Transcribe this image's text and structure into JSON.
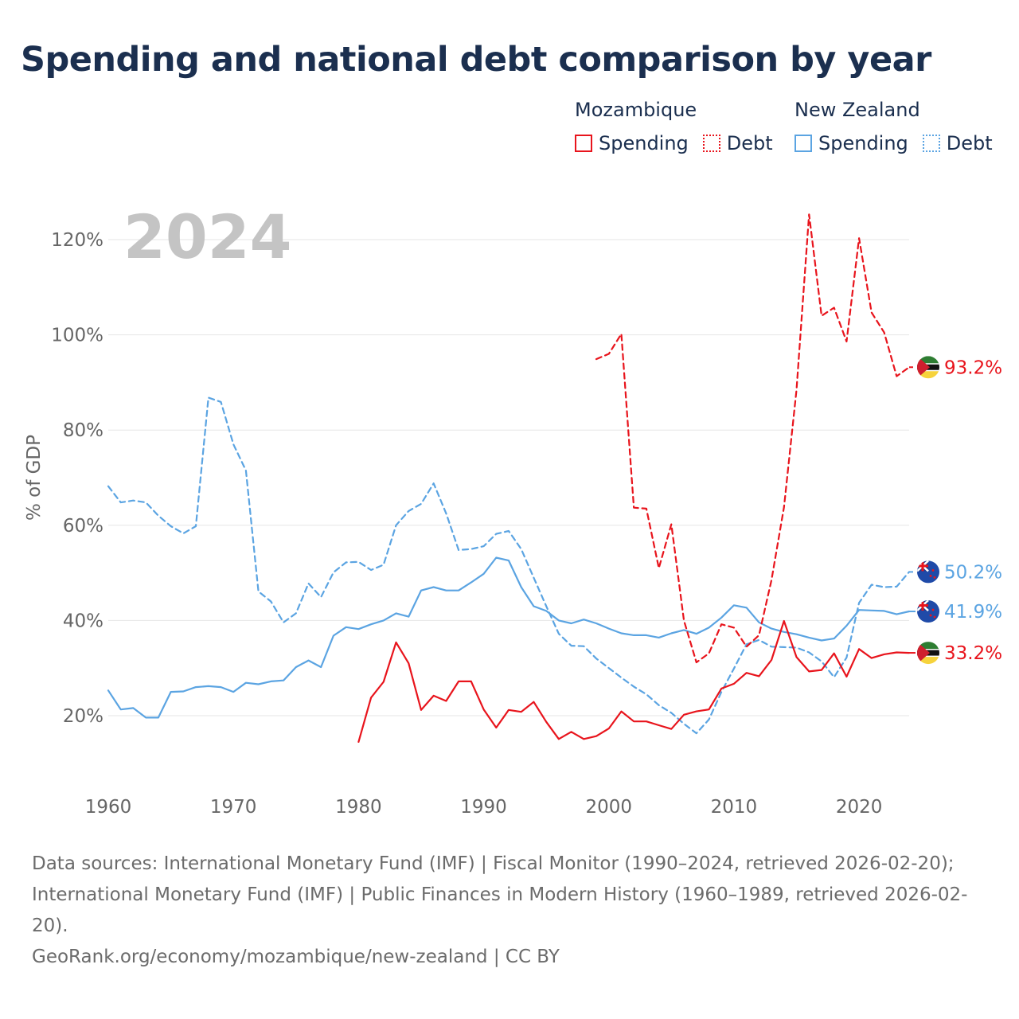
{
  "title": "Spending and national debt comparison by year",
  "legend": {
    "groups": [
      {
        "country": "Mozambique",
        "items": [
          {
            "label": "Spending",
            "style": "solid",
            "color": "#e8141c"
          },
          {
            "label": "Debt",
            "style": "dotted",
            "color": "#e8141c"
          }
        ]
      },
      {
        "country": "New Zealand",
        "items": [
          {
            "label": "Spending",
            "style": "solid",
            "color": "#5ba4e2"
          },
          {
            "label": "Debt",
            "style": "dotted",
            "color": "#5ba4e2"
          }
        ]
      }
    ]
  },
  "colors": {
    "mozambique": "#e8141c",
    "new_zealand": "#5ba4e2",
    "grid": "#e6e6e6",
    "year_label": "#c4c4c4"
  },
  "footer": {
    "sources": "Data sources: International Monetary Fund (IMF) | Fiscal Monitor (1990–2024, retrieved 2026-02-20); International Monetary Fund (IMF) | Public Finances in Modern History (1960–1989, retrieved 2026-02-20).",
    "credit": "GeoRank.org/economy/mozambique/new-zealand | CC BY"
  },
  "chart_data": {
    "type": "line",
    "current_year_label": "2024",
    "ylabel": "% of GDP",
    "xlabel": "",
    "xlim": [
      1960,
      2024
    ],
    "ylim": [
      12,
      124
    ],
    "xticks": [
      1960,
      1970,
      1980,
      1990,
      2000,
      2010,
      2020
    ],
    "yticks": [
      20,
      40,
      60,
      80,
      100,
      120
    ],
    "ytick_labels": [
      "20%",
      "40%",
      "60%",
      "80%",
      "100%",
      "120%"
    ],
    "grid": true,
    "series": [
      {
        "name": "New Zealand Debt",
        "country": "New Zealand",
        "metric": "Debt",
        "dash": "dashed",
        "color": "#5ba4e2",
        "end_label": "50.2%",
        "flag": "new-zealand-flag-icon",
        "x": [
          1960,
          1961,
          1962,
          1963,
          1964,
          1965,
          1966,
          1967,
          1968,
          1969,
          1970,
          1971,
          1972,
          1973,
          1974,
          1975,
          1976,
          1977,
          1978,
          1979,
          1980,
          1981,
          1982,
          1983,
          1984,
          1985,
          1986,
          1987,
          1988,
          1989,
          1990,
          1991,
          1992,
          1993,
          1994,
          1995,
          1996,
          1997,
          1998,
          1999,
          2000,
          2001,
          2002,
          2003,
          2004,
          2005,
          2006,
          2007,
          2008,
          2009,
          2010,
          2011,
          2012,
          2013,
          2014,
          2015,
          2016,
          2017,
          2018,
          2019,
          2020,
          2021,
          2022,
          2023,
          2024
        ],
        "values": [
          68.2,
          64.8,
          65.2,
          64.8,
          62,
          59.8,
          58.3,
          59.8,
          86.8,
          85.9,
          77,
          71.5,
          46.1,
          44,
          39.6,
          41.5,
          47.8,
          44.9,
          50.1,
          52.2,
          52.3,
          50.6,
          51.7,
          60,
          63,
          64.5,
          68.8,
          62.5,
          54.8,
          55,
          55.6,
          58.2,
          58.8,
          55,
          49,
          43,
          37.2,
          34.7,
          34.6,
          32,
          30,
          28,
          26.1,
          24.5,
          22.2,
          20.6,
          18.3,
          16.3,
          19.2,
          25,
          29.9,
          35,
          35.9,
          34.5,
          34.4,
          34.3,
          33.3,
          31.4,
          28.1,
          32.2,
          43.7,
          47.5,
          47,
          47.1,
          50.2
        ]
      },
      {
        "name": "New Zealand Spending",
        "country": "New Zealand",
        "metric": "Spending",
        "dash": "solid",
        "color": "#5ba4e2",
        "end_label": "41.9%",
        "flag": "new-zealand-flag-icon",
        "x": [
          1960,
          1961,
          1962,
          1963,
          1964,
          1965,
          1966,
          1967,
          1968,
          1969,
          1970,
          1971,
          1972,
          1973,
          1974,
          1975,
          1976,
          1977,
          1978,
          1979,
          1980,
          1981,
          1982,
          1983,
          1984,
          1985,
          1986,
          1987,
          1988,
          1989,
          1990,
          1991,
          1992,
          1993,
          1994,
          1995,
          1996,
          1997,
          1998,
          1999,
          2000,
          2001,
          2002,
          2003,
          2004,
          2005,
          2006,
          2007,
          2008,
          2009,
          2010,
          2011,
          2012,
          2013,
          2014,
          2015,
          2016,
          2017,
          2018,
          2019,
          2020,
          2021,
          2022,
          2023,
          2024
        ],
        "values": [
          25.3,
          21.3,
          21.6,
          19.6,
          19.6,
          25,
          25.1,
          26,
          26.2,
          26,
          25,
          26.9,
          26.6,
          27.2,
          27.4,
          30.2,
          31.6,
          30.2,
          36.8,
          38.6,
          38.2,
          39.2,
          40,
          41.5,
          40.8,
          46.3,
          47,
          46.3,
          46.3,
          48,
          49.8,
          53.2,
          52.6,
          47,
          43,
          42,
          40,
          39.4,
          40.2,
          39.4,
          38.3,
          37.3,
          36.9,
          36.9,
          36.4,
          37.3,
          38,
          37.2,
          38.5,
          40.6,
          43.2,
          42.7,
          39.6,
          38.3,
          37.6,
          37.1,
          36.4,
          35.8,
          36.2,
          38.9,
          42.2,
          42.1,
          42,
          41.3,
          41.9
        ]
      },
      {
        "name": "Mozambique Debt",
        "country": "Mozambique",
        "metric": "Debt",
        "dash": "dashed",
        "color": "#e8141c",
        "end_label": "93.2%",
        "flag": "mozambique-flag-icon",
        "x": [
          1999,
          2000,
          2001,
          2002,
          2003,
          2004,
          2005,
          2006,
          2007,
          2008,
          2009,
          2010,
          2011,
          2012,
          2013,
          2014,
          2015,
          2016,
          2017,
          2018,
          2019,
          2020,
          2021,
          2022,
          2023,
          2024
        ],
        "values": [
          94.9,
          96,
          100.2,
          63.7,
          63.5,
          51,
          60.2,
          40,
          31.2,
          33.1,
          39.2,
          38.5,
          34.5,
          36.9,
          48.5,
          63.8,
          88.4,
          125.3,
          104,
          105.7,
          98.6,
          120.3,
          104.7,
          100.5,
          91.3,
          93.2
        ]
      },
      {
        "name": "Mozambique Spending",
        "country": "Mozambique",
        "metric": "Spending",
        "dash": "solid",
        "color": "#e8141c",
        "end_label": "33.2%",
        "flag": "mozambique-flag-icon",
        "x": [
          1980,
          1981,
          1982,
          1983,
          1984,
          1985,
          1986,
          1987,
          1988,
          1989,
          1990,
          1991,
          1992,
          1993,
          1994,
          1995,
          1996,
          1997,
          1998,
          1999,
          2000,
          2001,
          2002,
          2003,
          2004,
          2005,
          2006,
          2007,
          2008,
          2009,
          2010,
          2011,
          2012,
          2013,
          2014,
          2015,
          2016,
          2017,
          2018,
          2019,
          2020,
          2021,
          2022,
          2023,
          2024
        ],
        "values": [
          14.5,
          23.8,
          27.1,
          35.4,
          31,
          21.2,
          24.2,
          23.1,
          27.2,
          27.2,
          21.3,
          17.5,
          21.2,
          20.8,
          22.9,
          18.7,
          15.1,
          16.6,
          15.1,
          15.7,
          17.3,
          20.9,
          18.8,
          18.8,
          18,
          17.2,
          20.2,
          20.9,
          21.3,
          25.7,
          26.7,
          29,
          28.3,
          31.7,
          39.9,
          32.3,
          29.3,
          29.6,
          33.1,
          28.2,
          34,
          32.1,
          32.9,
          33.3,
          33.2
        ]
      }
    ]
  }
}
